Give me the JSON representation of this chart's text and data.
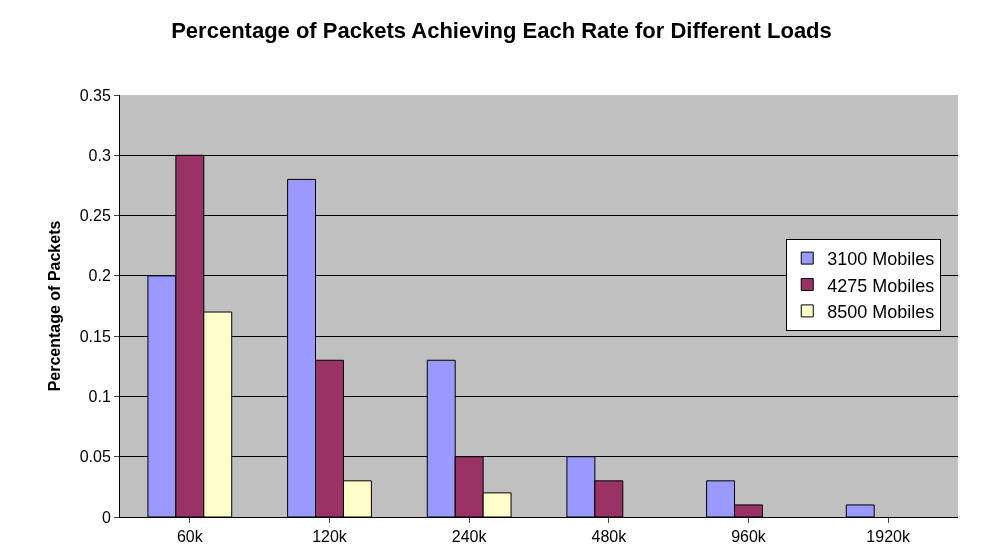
{
  "chart_data": {
    "type": "bar",
    "title": "Percentage of Packets Achieving Each Rate for Different Loads",
    "ylabel": "Percentage of Packets",
    "categories": [
      "60k",
      "120k",
      "240k",
      "480k",
      "960k",
      "1920k"
    ],
    "series": [
      {
        "name": "3100 Mobiles",
        "color": "#9999ff",
        "values": [
          0.2,
          0.28,
          0.13,
          0.05,
          0.03,
          0.01
        ]
      },
      {
        "name": "4275 Mobiles",
        "color": "#993366",
        "values": [
          0.3,
          0.13,
          0.05,
          0.03,
          0.01,
          null
        ]
      },
      {
        "name": "8500 Mobiles",
        "color": "#ffffcc",
        "values": [
          0.17,
          0.03,
          0.02,
          null,
          null,
          null
        ]
      }
    ],
    "ylim": [
      0,
      0.35
    ],
    "yticks": [
      0,
      0.05,
      0.1,
      0.15,
      0.2,
      0.25,
      0.3,
      0.35
    ],
    "grid": "y",
    "legend": "right"
  }
}
